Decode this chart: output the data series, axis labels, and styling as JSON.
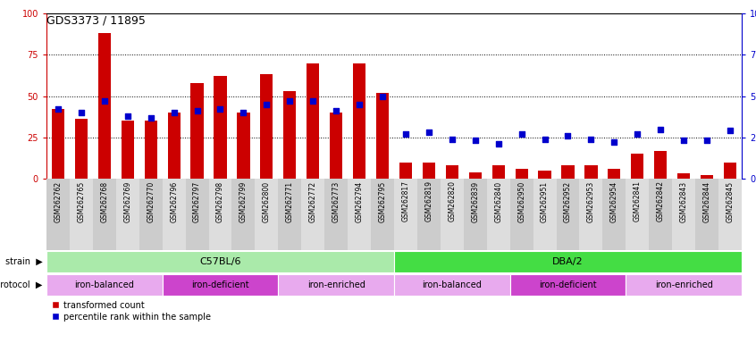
{
  "title": "GDS3373 / 11895",
  "samples": [
    "GSM262762",
    "GSM262765",
    "GSM262768",
    "GSM262769",
    "GSM262770",
    "GSM262796",
    "GSM262797",
    "GSM262798",
    "GSM262799",
    "GSM262800",
    "GSM262771",
    "GSM262772",
    "GSM262773",
    "GSM262794",
    "GSM262795",
    "GSM262817",
    "GSM262819",
    "GSM262820",
    "GSM262839",
    "GSM262840",
    "GSM262950",
    "GSM262951",
    "GSM262952",
    "GSM262953",
    "GSM262954",
    "GSM262841",
    "GSM262842",
    "GSM262843",
    "GSM262844",
    "GSM262845"
  ],
  "transformed_count": [
    42,
    36,
    88,
    35,
    35,
    40,
    58,
    62,
    40,
    63,
    53,
    70,
    40,
    70,
    52,
    10,
    10,
    8,
    4,
    8,
    6,
    5,
    8,
    8,
    6,
    15,
    17,
    3,
    2,
    10
  ],
  "percentile_rank": [
    42,
    40,
    47,
    38,
    37,
    40,
    41,
    42,
    40,
    45,
    47,
    47,
    41,
    45,
    50,
    27,
    28,
    24,
    23,
    21,
    27,
    24,
    26,
    24,
    22,
    27,
    30,
    23,
    23,
    29
  ],
  "bar_color": "#cc0000",
  "dot_color": "#0000cc",
  "ylim": [
    0,
    100
  ],
  "yticks": [
    0,
    25,
    50,
    75,
    100
  ],
  "grid_lines": [
    25,
    50,
    75
  ],
  "strain_groups": [
    {
      "label": "C57BL/6",
      "start": 0,
      "end": 14,
      "color": "#aaeaaa"
    },
    {
      "label": "DBA/2",
      "start": 15,
      "end": 29,
      "color": "#44dd44"
    }
  ],
  "protocol_groups": [
    {
      "label": "iron-balanced",
      "start": 0,
      "end": 4,
      "color": "#e8aaee"
    },
    {
      "label": "iron-deficient",
      "start": 5,
      "end": 9,
      "color": "#cc44cc"
    },
    {
      "label": "iron-enriched",
      "start": 10,
      "end": 14,
      "color": "#e8aaee"
    },
    {
      "label": "iron-balanced",
      "start": 15,
      "end": 19,
      "color": "#e8aaee"
    },
    {
      "label": "iron-deficient",
      "start": 20,
      "end": 24,
      "color": "#cc44cc"
    },
    {
      "label": "iron-enriched",
      "start": 25,
      "end": 29,
      "color": "#e8aaee"
    }
  ],
  "legend_label_bar": "transformed count",
  "legend_label_dot": "percentile rank within the sample"
}
